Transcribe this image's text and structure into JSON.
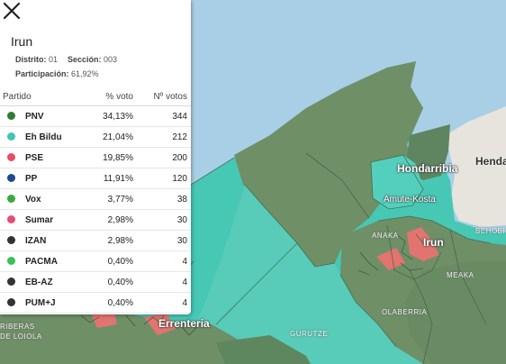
{
  "map": {
    "labels": {
      "hondarribia": "Hondarribia",
      "amute": "Amute-Kosta",
      "irun": "Irun",
      "errenteria": "Errenteria",
      "hendaye": "Henday",
      "anaka": "ANAKA",
      "behobia": "BEHOBI",
      "meaka": "MEAKA",
      "olaberria": "OLABERRIA",
      "gurutze": "GURUTZE",
      "riberas_1": "RIBERAS",
      "riberas_2": "DE LOIOLA"
    },
    "colors": {
      "sea": "#a9cfe6",
      "pnv": "#6f8f67",
      "bildu": "#45c9b6",
      "pse": "#e2746f",
      "french_land": "#e6e4dd"
    }
  },
  "panel": {
    "close_icon": "close-icon",
    "title": "Irun",
    "distrito_label": "Distrito:",
    "distrito_value": "01",
    "seccion_label": "Sección:",
    "seccion_value": "003",
    "participacion_label": "Participación:",
    "participacion_value": "61,92%",
    "table": {
      "headers": {
        "party": "Partido",
        "pct": "% voto",
        "votes": "Nº votos"
      },
      "rows": [
        {
          "party": "PNV",
          "pct": "34,13%",
          "votes": "344",
          "color": "#2e7d32"
        },
        {
          "party": "Eh Bildu",
          "pct": "21,04%",
          "votes": "212",
          "color": "#40c7b3"
        },
        {
          "party": "PSE",
          "pct": "19,85%",
          "votes": "200",
          "color": "#e84c62"
        },
        {
          "party": "PP",
          "pct": "11,91%",
          "votes": "120",
          "color": "#1c4a8c"
        },
        {
          "party": "Vox",
          "pct": "3,77%",
          "votes": "38",
          "color": "#36ad3a"
        },
        {
          "party": "Sumar",
          "pct": "2,98%",
          "votes": "30",
          "color": "#e64c74"
        },
        {
          "party": "IZAN",
          "pct": "2,98%",
          "votes": "30",
          "color": "#333333"
        },
        {
          "party": "PACMA",
          "pct": "0,40%",
          "votes": "4",
          "color": "#36c450"
        },
        {
          "party": "EB-AZ",
          "pct": "0,40%",
          "votes": "4",
          "color": "#333333"
        },
        {
          "party": "PUM+J",
          "pct": "0,40%",
          "votes": "4",
          "color": "#333333"
        }
      ]
    }
  }
}
